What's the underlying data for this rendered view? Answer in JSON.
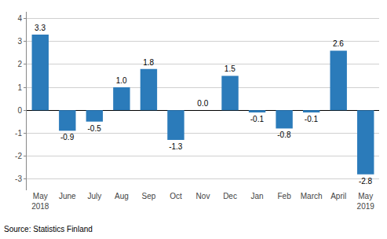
{
  "chart_data": {
    "type": "bar",
    "categories": [
      "May\n2018",
      "June",
      "July",
      "Aug",
      "Sep",
      "Oct",
      "Nov",
      "Dec",
      "Jan",
      "Feb",
      "March",
      "April",
      "May\n2019"
    ],
    "values": [
      3.3,
      -0.9,
      -0.5,
      1.0,
      1.8,
      -1.3,
      0.0,
      1.5,
      -0.1,
      -0.8,
      -0.1,
      2.6,
      -2.8
    ],
    "value_labels": [
      "3.3",
      "-0.9",
      "-0.5",
      "1.0",
      "1.8",
      "-1.3",
      "0.0",
      "1.5",
      "-0.1",
      "-0.8",
      "-0.1",
      "2.6",
      "-2.8"
    ],
    "data_labels": true,
    "color": "#2b7bba",
    "ylim": [
      -3.5,
      4.3
    ],
    "yticks": [
      -3,
      -2,
      -1,
      0,
      1,
      2,
      3,
      4
    ],
    "grid": true,
    "annotations": [
      "Source: Statistics Finland"
    ]
  }
}
